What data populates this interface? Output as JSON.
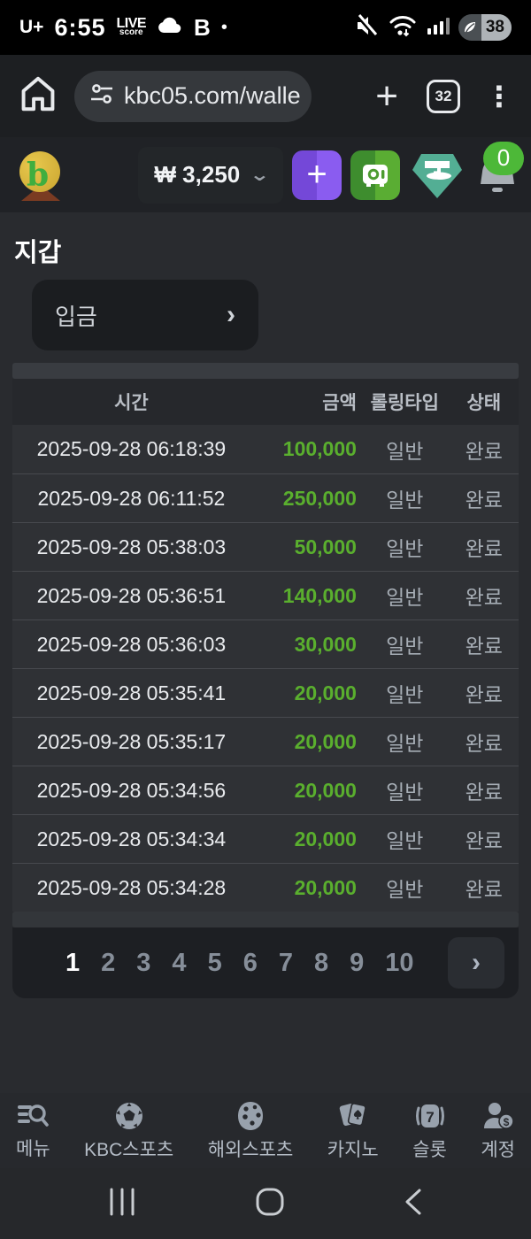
{
  "status_bar": {
    "carrier": "U+",
    "time": "6:55",
    "livescore_line1": "LIVE",
    "livescore_line2": "score",
    "app_b": "B",
    "dot": "•",
    "battery_percent": "38"
  },
  "browser": {
    "url": "kbc05.com/walle",
    "tab_count": "32",
    "plus": "+",
    "kebab": "⋮"
  },
  "site_header": {
    "balance": "₩ 3,250",
    "chevron": "⌄",
    "plus_button": "+",
    "notification_count": "0",
    "logo_letter": "b"
  },
  "page": {
    "title": "지갑",
    "deposit_button_label": "입금",
    "deposit_chevron": "›"
  },
  "table": {
    "headers": {
      "time": "시간",
      "amount": "금액",
      "rolling_type": "롤링타입",
      "status": "상태"
    },
    "rows": [
      {
        "time": "2025-09-28 06:18:39",
        "amount": "100,000",
        "type": "일반",
        "status": "완료"
      },
      {
        "time": "2025-09-28 06:11:52",
        "amount": "250,000",
        "type": "일반",
        "status": "완료"
      },
      {
        "time": "2025-09-28 05:38:03",
        "amount": "50,000",
        "type": "일반",
        "status": "완료"
      },
      {
        "time": "2025-09-28 05:36:51",
        "amount": "140,000",
        "type": "일반",
        "status": "완료"
      },
      {
        "time": "2025-09-28 05:36:03",
        "amount": "30,000",
        "type": "일반",
        "status": "완료"
      },
      {
        "time": "2025-09-28 05:35:41",
        "amount": "20,000",
        "type": "일반",
        "status": "완료"
      },
      {
        "time": "2025-09-28 05:35:17",
        "amount": "20,000",
        "type": "일반",
        "status": "완료"
      },
      {
        "time": "2025-09-28 05:34:56",
        "amount": "20,000",
        "type": "일반",
        "status": "완료"
      },
      {
        "time": "2025-09-28 05:34:34",
        "amount": "20,000",
        "type": "일반",
        "status": "완료"
      },
      {
        "time": "2025-09-28 05:34:28",
        "amount": "20,000",
        "type": "일반",
        "status": "완료"
      }
    ]
  },
  "pagination": {
    "pages": [
      "1",
      "2",
      "3",
      "4",
      "5",
      "6",
      "7",
      "8",
      "9",
      "10"
    ],
    "current": "1",
    "next": "›"
  },
  "bottom_nav": {
    "items": [
      {
        "label": "메뉴"
      },
      {
        "label": "KBC스포츠"
      },
      {
        "label": "해외스포츠"
      },
      {
        "label": "카지노"
      },
      {
        "label": "슬롯"
      },
      {
        "label": "계정"
      }
    ]
  },
  "colors": {
    "amount_green": "#5aaf2e",
    "badge_green": "#4db838",
    "purple_button": "#7d55e6",
    "green_button": "#4d9c30",
    "tether_teal": "#53ae94"
  }
}
